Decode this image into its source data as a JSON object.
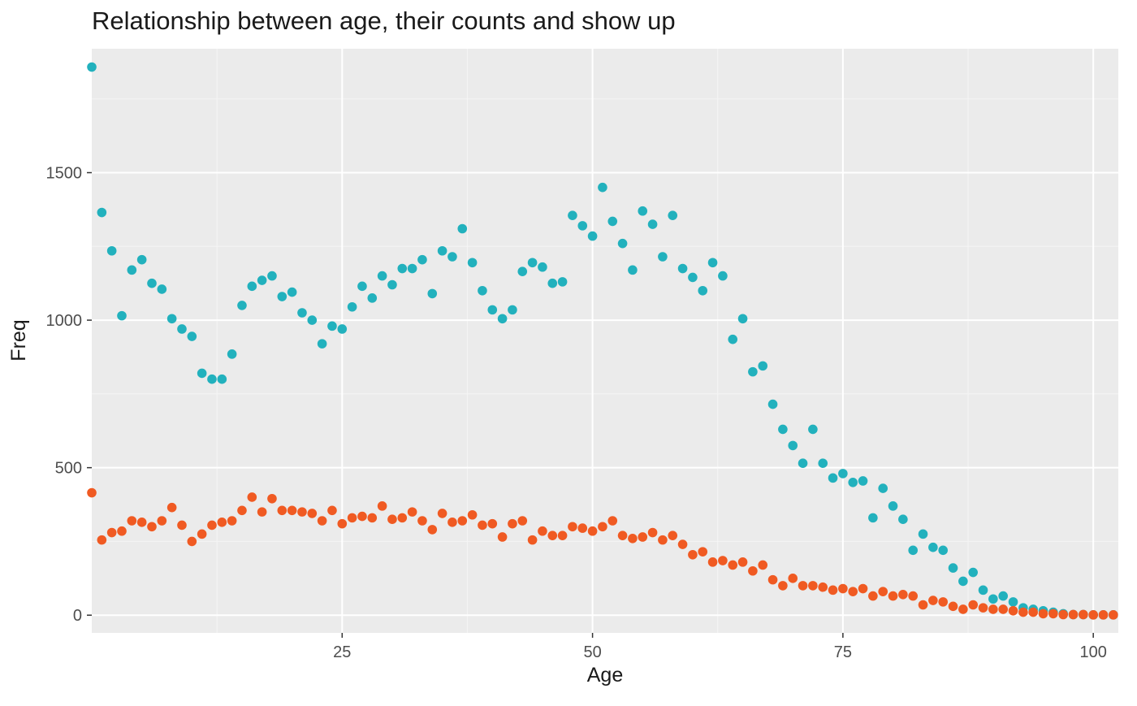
{
  "chart_data": {
    "type": "scatter",
    "title": "Relationship between age, their counts and show up",
    "xlabel": "Age",
    "ylabel": "Freq",
    "xlim": [
      0,
      102.5
    ],
    "ylim": [
      -60,
      1920
    ],
    "x_ticks": [
      25,
      50,
      75,
      100
    ],
    "y_ticks": [
      0,
      500,
      1000,
      1500
    ],
    "grid": true,
    "legend": "none",
    "series": [
      {
        "color": "#22b1bd",
        "x": [
          0,
          1,
          2,
          3,
          4,
          5,
          6,
          7,
          8,
          9,
          10,
          11,
          12,
          13,
          14,
          15,
          16,
          17,
          18,
          19,
          20,
          21,
          22,
          23,
          24,
          25,
          26,
          27,
          28,
          29,
          30,
          31,
          32,
          33,
          34,
          35,
          36,
          37,
          38,
          39,
          40,
          41,
          42,
          43,
          44,
          45,
          46,
          47,
          48,
          49,
          50,
          51,
          52,
          53,
          54,
          55,
          56,
          57,
          58,
          59,
          60,
          61,
          62,
          63,
          64,
          65,
          66,
          67,
          68,
          69,
          70,
          71,
          72,
          73,
          74,
          75,
          76,
          77,
          78,
          79,
          80,
          81,
          82,
          83,
          84,
          85,
          86,
          87,
          88,
          89,
          90,
          91,
          92,
          93,
          94,
          95,
          96,
          97,
          98,
          99,
          100,
          101,
          102
        ],
        "y": [
          1858,
          1365,
          1235,
          1015,
          1170,
          1205,
          1125,
          1105,
          1005,
          970,
          945,
          820,
          800,
          800,
          885,
          1050,
          1115,
          1135,
          1150,
          1080,
          1095,
          1025,
          1000,
          920,
          980,
          970,
          1045,
          1115,
          1075,
          1150,
          1120,
          1175,
          1175,
          1205,
          1090,
          1235,
          1215,
          1310,
          1195,
          1100,
          1035,
          1005,
          1035,
          1165,
          1195,
          1180,
          1125,
          1130,
          1355,
          1320,
          1285,
          1450,
          1335,
          1260,
          1170,
          1370,
          1325,
          1215,
          1355,
          1175,
          1145,
          1100,
          1195,
          1150,
          935,
          1005,
          825,
          845,
          715,
          630,
          575,
          515,
          630,
          515,
          465,
          480,
          450,
          455,
          330,
          430,
          370,
          325,
          220,
          275,
          230,
          220,
          160,
          115,
          145,
          85,
          55,
          65,
          45,
          25,
          20,
          15,
          10,
          5,
          2,
          2,
          1,
          1,
          1
        ]
      },
      {
        "color": "#f05a22",
        "x": [
          0,
          1,
          2,
          3,
          4,
          5,
          6,
          7,
          8,
          9,
          10,
          11,
          12,
          13,
          14,
          15,
          16,
          17,
          18,
          19,
          20,
          21,
          22,
          23,
          24,
          25,
          26,
          27,
          28,
          29,
          30,
          31,
          32,
          33,
          34,
          35,
          36,
          37,
          38,
          39,
          40,
          41,
          42,
          43,
          44,
          45,
          46,
          47,
          48,
          49,
          50,
          51,
          52,
          53,
          54,
          55,
          56,
          57,
          58,
          59,
          60,
          61,
          62,
          63,
          64,
          65,
          66,
          67,
          68,
          69,
          70,
          71,
          72,
          73,
          74,
          75,
          76,
          77,
          78,
          79,
          80,
          81,
          82,
          83,
          84,
          85,
          86,
          87,
          88,
          89,
          90,
          91,
          92,
          93,
          94,
          95,
          96,
          97,
          98,
          99,
          100,
          101,
          102
        ],
        "y": [
          415,
          255,
          280,
          285,
          320,
          315,
          300,
          320,
          365,
          305,
          250,
          275,
          305,
          315,
          320,
          355,
          400,
          350,
          395,
          355,
          355,
          350,
          345,
          320,
          355,
          310,
          330,
          335,
          330,
          370,
          325,
          330,
          350,
          320,
          290,
          345,
          315,
          320,
          340,
          305,
          310,
          265,
          310,
          320,
          255,
          285,
          270,
          270,
          300,
          295,
          285,
          300,
          320,
          270,
          260,
          265,
          280,
          255,
          270,
          240,
          205,
          215,
          180,
          185,
          170,
          180,
          150,
          170,
          120,
          100,
          125,
          100,
          100,
          95,
          85,
          90,
          80,
          90,
          65,
          80,
          65,
          70,
          65,
          35,
          50,
          45,
          30,
          20,
          35,
          25,
          20,
          20,
          15,
          10,
          10,
          5,
          5,
          2,
          2,
          2,
          1,
          1,
          1
        ]
      }
    ]
  }
}
